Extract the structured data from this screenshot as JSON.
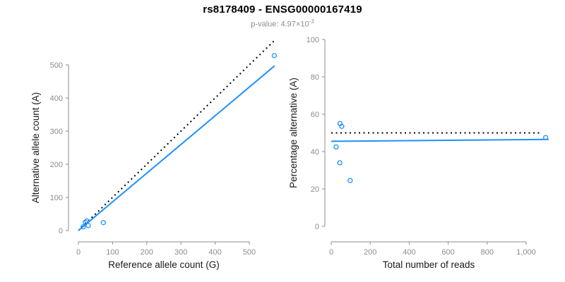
{
  "header": {
    "title": "rs8178409 - ENSG00000167419",
    "subtitle_prefix": "p-value: 4.97×10",
    "subtitle_exponent": "-3"
  },
  "chart_data": [
    {
      "type": "scatter",
      "id": "allele-counts",
      "xlabel": "Reference allele count (G)",
      "ylabel": "Alternative allele count (A)",
      "xlim": [
        0,
        590
      ],
      "ylim": [
        0,
        590
      ],
      "xticks": [
        0,
        100,
        200,
        300,
        400,
        500
      ],
      "xtick_labels": [
        "0",
        "100",
        "200",
        "300",
        "400",
        "500"
      ],
      "yticks": [
        0,
        100,
        200,
        300,
        400,
        500
      ],
      "ytick_labels": [
        "0",
        "100",
        "200",
        "300",
        "400",
        "500"
      ],
      "grid": false,
      "legend": null,
      "point_color": "#1E90FF",
      "axis_color": "#8e8e8e",
      "tick_label_color": "#8c8c8c",
      "label_color": "#1a1a1a",
      "points": [
        [
          20,
          25
        ],
        [
          25,
          29
        ],
        [
          14,
          11
        ],
        [
          29,
          15
        ],
        [
          73,
          24
        ],
        [
          573,
          528
        ]
      ],
      "lines": [
        {
          "name": "identity-line",
          "style": "dotted",
          "color": "#000000",
          "x1": 0,
          "y1": 0,
          "x2": 572,
          "y2": 572
        },
        {
          "name": "regression-line",
          "style": "solid",
          "color": "#1E90FF",
          "x1": 0,
          "y1": 0,
          "x2": 574,
          "y2": 497
        }
      ]
    },
    {
      "type": "scatter",
      "id": "percentage-vs-reads",
      "xlabel": "Total number of reads",
      "ylabel": "Percentage alternative (A)",
      "xlim": [
        0,
        1150
      ],
      "ylim": [
        0,
        100
      ],
      "xticks": [
        0,
        200,
        400,
        600,
        800,
        1000
      ],
      "xtick_labels": [
        "0",
        "200",
        "400",
        "600",
        "800",
        "1,000"
      ],
      "yticks": [
        0,
        20,
        40,
        60,
        80,
        100
      ],
      "ytick_labels": [
        "0",
        "20",
        "40",
        "60",
        "80",
        "100"
      ],
      "grid": false,
      "legend": null,
      "point_color": "#1E90FF",
      "axis_color": "#8e8e8e",
      "tick_label_color": "#8c8c8c",
      "label_color": "#1a1a1a",
      "points": [
        [
          45,
          55
        ],
        [
          54,
          53.5
        ],
        [
          25,
          42.5
        ],
        [
          44,
          34
        ],
        [
          97,
          24.5
        ],
        [
          1100,
          47.5
        ]
      ],
      "lines": [
        {
          "name": "expected-50pct-line",
          "style": "dotted",
          "color": "#000000",
          "x1": 0,
          "y1": 50,
          "x2": 1080,
          "y2": 50
        },
        {
          "name": "regression-line",
          "style": "solid",
          "color": "#1E90FF",
          "x1": 0,
          "y1": 45.5,
          "x2": 1115,
          "y2": 46.5
        }
      ]
    }
  ]
}
